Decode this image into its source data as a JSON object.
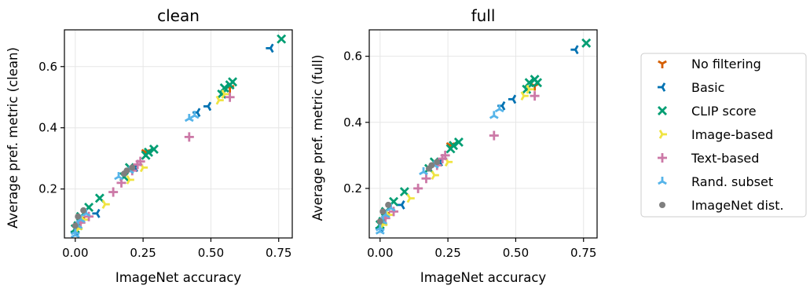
{
  "colors": {
    "no_filtering": "#d55e00",
    "basic": "#0072b2",
    "clip_score": "#009e73",
    "image_based": "#f0e442",
    "text_based": "#cc79a7",
    "rand_subset": "#56b4e9",
    "imagenet_dist": "#7f7f7f"
  },
  "legend": {
    "items": [
      {
        "label": "No filtering",
        "color": "#d55e00",
        "marker": "tri-down"
      },
      {
        "label": "Basic",
        "color": "#0072b2",
        "marker": "tri-left"
      },
      {
        "label": "CLIP score",
        "color": "#009e73",
        "marker": "x"
      },
      {
        "label": "Image-based",
        "color": "#f0e442",
        "marker": "tri-right"
      },
      {
        "label": "Text-based",
        "color": "#cc79a7",
        "marker": "plus"
      },
      {
        "label": "Rand. subset",
        "color": "#56b4e9",
        "marker": "tri-up"
      },
      {
        "label": "ImageNet dist.",
        "color": "#7f7f7f",
        "marker": "dot"
      }
    ]
  },
  "chart_data": [
    {
      "type": "scatter",
      "title": "clean",
      "xlabel": "ImageNet accuracy",
      "ylabel": "Average pref. metric (clean)",
      "xlim": [
        -0.04,
        0.8
      ],
      "ylim": [
        0.04,
        0.72
      ],
      "xticks": [
        0.0,
        0.25,
        0.5,
        0.75
      ],
      "xtick_labels": [
        "0.00",
        "0.25",
        "0.50",
        "0.75"
      ],
      "yticks": [
        0.2,
        0.4,
        0.6
      ],
      "ytick_labels": [
        "0.2",
        "0.4",
        "0.6"
      ],
      "grid": true,
      "series": [
        {
          "name": "No filtering",
          "points": [
            [
              0.02,
              0.1
            ],
            [
              0.26,
              0.32
            ],
            [
              0.57,
              0.53
            ]
          ]
        },
        {
          "name": "Basic",
          "points": [
            [
              0.0,
              0.06
            ],
            [
              0.08,
              0.12
            ],
            [
              0.22,
              0.27
            ],
            [
              0.45,
              0.45
            ],
            [
              0.49,
              0.47
            ],
            [
              0.72,
              0.66
            ]
          ]
        },
        {
          "name": "CLIP score",
          "points": [
            [
              0.0,
              0.07
            ],
            [
              0.01,
              0.08
            ],
            [
              0.02,
              0.11
            ],
            [
              0.05,
              0.14
            ],
            [
              0.09,
              0.17
            ],
            [
              0.18,
              0.24
            ],
            [
              0.2,
              0.27
            ],
            [
              0.26,
              0.31
            ],
            [
              0.27,
              0.32
            ],
            [
              0.29,
              0.33
            ],
            [
              0.54,
              0.51
            ],
            [
              0.55,
              0.53
            ],
            [
              0.57,
              0.54
            ],
            [
              0.58,
              0.55
            ],
            [
              0.76,
              0.69
            ]
          ]
        },
        {
          "name": "Image-based",
          "points": [
            [
              0.01,
              0.07
            ],
            [
              0.03,
              0.1
            ],
            [
              0.11,
              0.15
            ],
            [
              0.2,
              0.23
            ],
            [
              0.25,
              0.27
            ],
            [
              0.53,
              0.49
            ],
            [
              0.55,
              0.51
            ]
          ]
        },
        {
          "name": "Text-based",
          "points": [
            [
              0.02,
              0.09
            ],
            [
              0.05,
              0.11
            ],
            [
              0.14,
              0.19
            ],
            [
              0.17,
              0.22
            ],
            [
              0.21,
              0.26
            ],
            [
              0.23,
              0.28
            ],
            [
              0.24,
              0.29
            ],
            [
              0.42,
              0.37
            ],
            [
              0.57,
              0.5
            ]
          ]
        },
        {
          "name": "Rand. subset",
          "points": [
            [
              0.0,
              0.05
            ],
            [
              0.0,
              0.06
            ],
            [
              0.01,
              0.08
            ],
            [
              0.02,
              0.1
            ],
            [
              0.04,
              0.12
            ],
            [
              0.16,
              0.24
            ],
            [
              0.2,
              0.26
            ],
            [
              0.42,
              0.43
            ],
            [
              0.44,
              0.44
            ]
          ]
        },
        {
          "name": "ImageNet dist.",
          "points": [
            [
              0.0,
              0.08
            ],
            [
              0.01,
              0.11
            ],
            [
              0.03,
              0.13
            ],
            [
              0.18,
              0.25
            ],
            [
              0.19,
              0.26
            ],
            [
              0.21,
              0.27
            ]
          ]
        }
      ]
    },
    {
      "type": "scatter",
      "title": "full",
      "xlabel": "ImageNet accuracy",
      "ylabel": "Average pref. metric (full)",
      "xlim": [
        -0.04,
        0.8
      ],
      "ylim": [
        0.05,
        0.68
      ],
      "xticks": [
        0.0,
        0.25,
        0.5,
        0.75
      ],
      "xtick_labels": [
        "0.00",
        "0.25",
        "0.50",
        "0.75"
      ],
      "yticks": [
        0.2,
        0.4,
        0.6
      ],
      "ytick_labels": [
        "0.2",
        "0.4",
        "0.6"
      ],
      "grid": true,
      "series": [
        {
          "name": "No filtering",
          "points": [
            [
              0.02,
              0.12
            ],
            [
              0.26,
              0.33
            ],
            [
              0.57,
              0.51
            ]
          ]
        },
        {
          "name": "Basic",
          "points": [
            [
              0.0,
              0.08
            ],
            [
              0.08,
              0.15
            ],
            [
              0.22,
              0.28
            ],
            [
              0.45,
              0.45
            ],
            [
              0.49,
              0.47
            ],
            [
              0.72,
              0.62
            ]
          ]
        },
        {
          "name": "CLIP score",
          "points": [
            [
              0.0,
              0.09
            ],
            [
              0.01,
              0.1
            ],
            [
              0.02,
              0.13
            ],
            [
              0.05,
              0.16
            ],
            [
              0.09,
              0.19
            ],
            [
              0.18,
              0.26
            ],
            [
              0.2,
              0.28
            ],
            [
              0.26,
              0.32
            ],
            [
              0.27,
              0.33
            ],
            [
              0.29,
              0.34
            ],
            [
              0.54,
              0.5
            ],
            [
              0.55,
              0.52
            ],
            [
              0.57,
              0.53
            ],
            [
              0.58,
              0.52
            ],
            [
              0.76,
              0.64
            ]
          ]
        },
        {
          "name": "Image-based",
          "points": [
            [
              0.01,
              0.09
            ],
            [
              0.03,
              0.12
            ],
            [
              0.11,
              0.17
            ],
            [
              0.2,
              0.24
            ],
            [
              0.25,
              0.28
            ],
            [
              0.53,
              0.48
            ],
            [
              0.55,
              0.5
            ]
          ]
        },
        {
          "name": "Text-based",
          "points": [
            [
              0.02,
              0.11
            ],
            [
              0.05,
              0.13
            ],
            [
              0.14,
              0.2
            ],
            [
              0.17,
              0.23
            ],
            [
              0.21,
              0.27
            ],
            [
              0.23,
              0.29
            ],
            [
              0.24,
              0.3
            ],
            [
              0.42,
              0.36
            ],
            [
              0.57,
              0.48
            ]
          ]
        },
        {
          "name": "Rand. subset",
          "points": [
            [
              0.0,
              0.07
            ],
            [
              0.0,
              0.08
            ],
            [
              0.01,
              0.1
            ],
            [
              0.02,
              0.12
            ],
            [
              0.04,
              0.14
            ],
            [
              0.16,
              0.25
            ],
            [
              0.2,
              0.27
            ],
            [
              0.42,
              0.42
            ],
            [
              0.44,
              0.44
            ]
          ]
        },
        {
          "name": "ImageNet dist.",
          "points": [
            [
              0.0,
              0.1
            ],
            [
              0.01,
              0.13
            ],
            [
              0.03,
              0.15
            ],
            [
              0.18,
              0.26
            ],
            [
              0.19,
              0.27
            ],
            [
              0.21,
              0.28
            ]
          ]
        }
      ]
    }
  ]
}
